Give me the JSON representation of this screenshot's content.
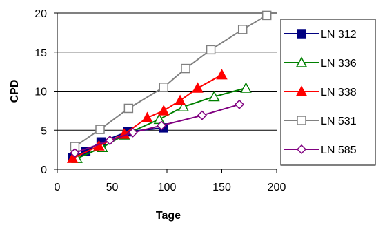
{
  "chart_data": {
    "type": "line",
    "title": "",
    "xlabel": "Tage",
    "ylabel": "CPD",
    "xlim": [
      0,
      200
    ],
    "ylim": [
      0,
      20
    ],
    "x_ticks": [
      0,
      50,
      100,
      150,
      200
    ],
    "y_ticks": [
      0,
      5,
      10,
      15,
      20
    ],
    "grid": "horizontal",
    "legend_position": "right",
    "series": [
      {
        "name": "LN 312",
        "color": "#000080",
        "marker": "square-filled",
        "points": [
          [
            14,
            1.5
          ],
          [
            26,
            2.3
          ],
          [
            40,
            3.5
          ],
          [
            64,
            4.8
          ],
          [
            97,
            5.3
          ]
        ]
      },
      {
        "name": "LN 336",
        "color": "#008000",
        "marker": "triangle-open",
        "points": [
          [
            18,
            1.4
          ],
          [
            41,
            2.8
          ],
          [
            61,
            4.4
          ],
          [
            93,
            6.4
          ],
          [
            115,
            8.0
          ],
          [
            143,
            9.3
          ],
          [
            172,
            10.4
          ]
        ]
      },
      {
        "name": "LN 338",
        "color": "#ff0000",
        "marker": "triangle-filled",
        "points": [
          [
            14,
            1.4
          ],
          [
            38,
            3.0
          ],
          [
            61,
            4.5
          ],
          [
            82,
            6.6
          ],
          [
            97,
            7.5
          ],
          [
            112,
            8.8
          ],
          [
            128,
            10.4
          ],
          [
            150,
            12.1
          ]
        ]
      },
      {
        "name": "LN 531",
        "color": "#808080",
        "marker": "square-open",
        "points": [
          [
            16,
            2.9
          ],
          [
            39,
            5.1
          ],
          [
            65,
            7.8
          ],
          [
            97,
            10.5
          ],
          [
            117,
            12.9
          ],
          [
            140,
            15.3
          ],
          [
            169,
            17.9
          ],
          [
            191,
            19.7
          ]
        ]
      },
      {
        "name": "LN 585",
        "color": "#800080",
        "marker": "diamond-open",
        "points": [
          [
            16,
            2.1
          ],
          [
            48,
            3.7
          ],
          [
            69,
            4.7
          ],
          [
            95,
            5.6
          ],
          [
            132,
            6.9
          ],
          [
            166,
            8.3
          ]
        ]
      }
    ]
  }
}
